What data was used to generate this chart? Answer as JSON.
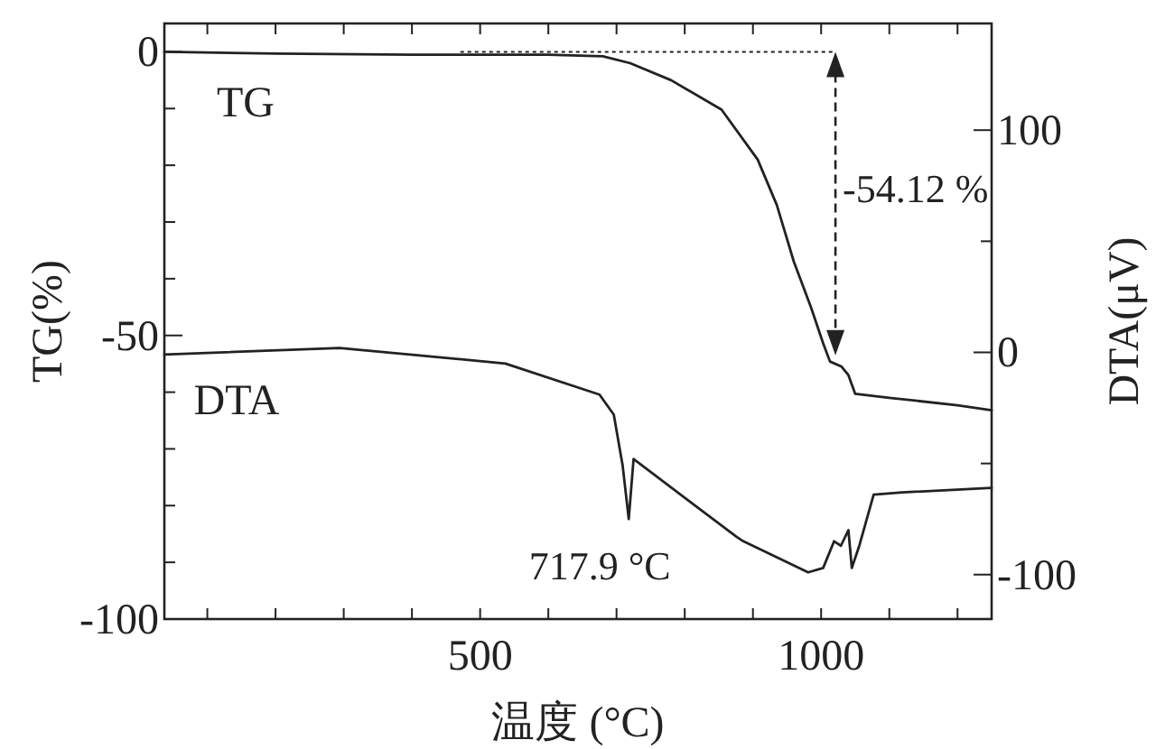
{
  "chart_data": {
    "type": "line",
    "xlabel": "温度 (°C)",
    "ylabel": "TG(%)",
    "y2label": "DTA(μV)",
    "xlim": [
      37,
      1250
    ],
    "xticks": [
      {
        "value": 100,
        "label": null
      },
      {
        "value": 200,
        "label": null
      },
      {
        "value": 300,
        "label": null
      },
      {
        "value": 400,
        "label": null
      },
      500,
      {
        "value": 600,
        "label": null
      },
      {
        "value": 700,
        "label": null
      },
      {
        "value": 800,
        "label": null
      },
      {
        "value": 900,
        "label": null
      },
      1000,
      {
        "value": 1100,
        "label": null
      },
      {
        "value": 1200,
        "label": null
      }
    ],
    "ylim": [
      -100,
      5
    ],
    "yticks": [
      -100,
      {
        "value": -90,
        "label": null
      },
      {
        "value": -80,
        "label": null
      },
      {
        "value": -70,
        "label": null
      },
      {
        "value": -60,
        "label": null
      },
      -50,
      {
        "value": -40,
        "label": null
      },
      {
        "value": -30,
        "label": null
      },
      {
        "value": -20,
        "label": null
      },
      {
        "value": -10,
        "label": null
      },
      0
    ],
    "y2lim": [
      -120,
      148
    ],
    "y2ticks": [
      -100,
      {
        "value": -50,
        "label": null
      },
      0,
      {
        "value": 50,
        "label": null
      },
      100
    ],
    "legend": "top left",
    "grid": false,
    "marker": "none",
    "line_style": "solid",
    "series": [
      {
        "name": "TG",
        "color": "#222222",
        "axis": "y",
        "x": [
          37,
          200,
          400,
          600,
          680,
          720,
          780,
          854,
          907,
          935,
          960,
          985,
          1003,
          1013,
          1030,
          1040,
          1050,
          1100,
          1200,
          1250
        ],
        "values": [
          0,
          -0.3,
          -0.5,
          -0.5,
          -0.8,
          -2,
          -5,
          -10.2,
          -19,
          -27,
          -37,
          -45,
          -51.4,
          -54.6,
          -55.5,
          -57,
          -60.3,
          -61,
          -62.3,
          -63.2
        ]
      },
      {
        "name": "DTA",
        "color": "#222222",
        "axis": "y2",
        "x": [
          37,
          294,
          537,
          675,
          696,
          709,
          717.9,
          725,
          876,
          886,
          981,
          1003,
          1019,
          1029,
          1040,
          1045,
          1056,
          1077,
          1119,
          1250
        ],
        "values": [
          -1,
          2,
          -5,
          -19,
          -28,
          -51,
          -75,
          -48,
          -83,
          -85,
          -99,
          -97,
          -85,
          -87,
          -80,
          -97,
          -87,
          -64,
          -63,
          -61
        ]
      }
    ],
    "annotations": [
      "-54.12 %",
      "717.9 °C"
    ]
  }
}
